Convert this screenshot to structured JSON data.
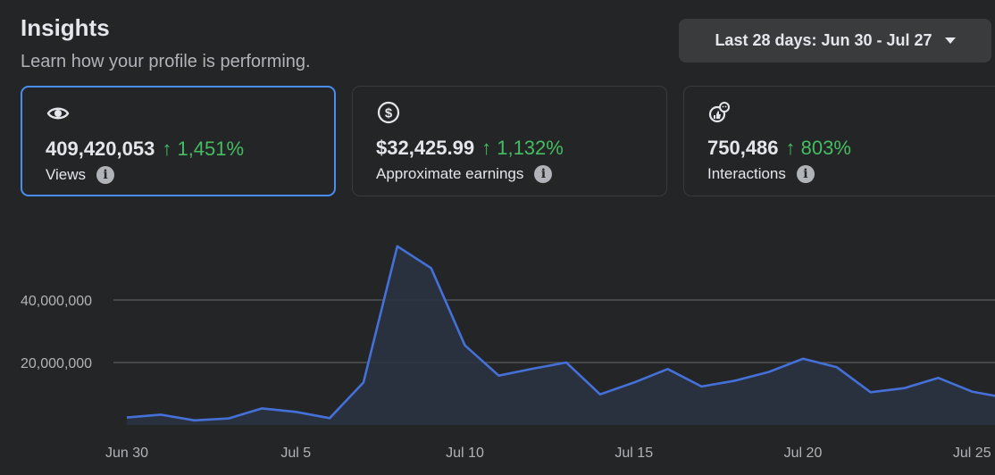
{
  "header": {
    "title": "Insights",
    "subtitle": "Learn how your profile is performing."
  },
  "date_range": {
    "label": "Last 28 days: Jun 30 - Jul 27"
  },
  "cards": [
    {
      "icon": "eye-icon",
      "value": "409,420,053",
      "change": "↑ 1,451%",
      "metric": "Views",
      "selected": true
    },
    {
      "icon": "dollar-icon",
      "value": "$32,425.99",
      "change": "↑ 1,132%",
      "metric": "Approximate earnings",
      "selected": false
    },
    {
      "icon": "interactions-icon",
      "value": "750,486",
      "change": "↑ 803%",
      "metric": "Interactions",
      "selected": false
    }
  ],
  "colors": {
    "background": "#242526",
    "accent": "#4b8cf0",
    "positive": "#45bd62",
    "line": "#4470d8",
    "area": "#2a3342"
  },
  "chart_data": {
    "type": "area",
    "x": [
      "Jun 30",
      "Jul 1",
      "Jul 2",
      "Jul 3",
      "Jul 4",
      "Jul 5",
      "Jul 6",
      "Jul 7",
      "Jul 8",
      "Jul 9",
      "Jul 10",
      "Jul 11",
      "Jul 12",
      "Jul 13",
      "Jul 14",
      "Jul 15",
      "Jul 16",
      "Jul 17",
      "Jul 18",
      "Jul 19",
      "Jul 20",
      "Jul 21",
      "Jul 22",
      "Jul 23",
      "Jul 24",
      "Jul 25",
      "Jul 26"
    ],
    "x_tick_labels": [
      "Jun 30",
      "Jul 5",
      "Jul 10",
      "Jul 15",
      "Jul 20",
      "Jul 25"
    ],
    "series": [
      {
        "values": [
          2400000,
          3300000,
          1500000,
          2100000,
          5300000,
          4200000,
          2200000,
          13600000,
          57200000,
          50200000,
          25500000,
          15800000,
          18000000,
          20000000,
          9800000,
          13600000,
          17900000,
          12300000,
          14200000,
          17000000,
          21200000,
          18500000,
          10500000,
          11800000,
          15100000,
          10700000,
          8700000
        ]
      }
    ],
    "y_ticks": [
      20000000,
      40000000
    ],
    "y_tick_labels": [
      "20,000,000",
      "40,000,000"
    ],
    "ylim": [
      0,
      60000000
    ],
    "grid": true
  }
}
